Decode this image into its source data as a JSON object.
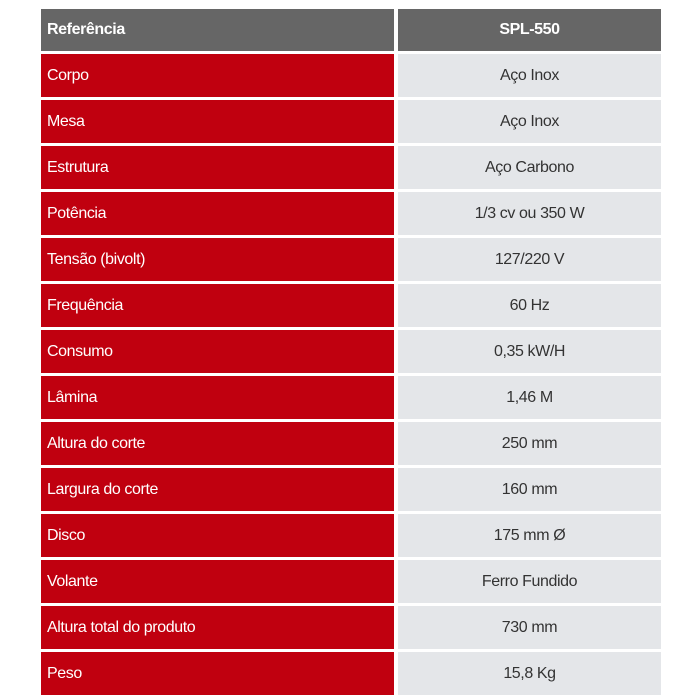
{
  "header": {
    "label": "Referência",
    "model": "SPL-550"
  },
  "rows": [
    {
      "label": "Corpo",
      "value": "Aço Inox"
    },
    {
      "label": "Mesa",
      "value": "Aço Inox"
    },
    {
      "label": "Estrutura",
      "value": "Aço Carbono"
    },
    {
      "label": "Potência",
      "value": "1/3 cv ou 350 W"
    },
    {
      "label": "Tensão (bivolt)",
      "value": "127/220 V"
    },
    {
      "label": "Frequência",
      "value": "60 Hz"
    },
    {
      "label": "Consumo",
      "value": "0,35 kW/H"
    },
    {
      "label": "Lâmina",
      "value": "1,46 M"
    },
    {
      "label": "Altura do corte",
      "value": "250 mm"
    },
    {
      "label": "Largura do corte",
      "value": "160 mm"
    },
    {
      "label": "Disco",
      "value": "175 mm Ø"
    },
    {
      "label": "Volante",
      "value": "Ferro Fundido"
    },
    {
      "label": "Altura total do produto",
      "value": "730 mm"
    },
    {
      "label": "Peso",
      "value": "15,8 Kg"
    }
  ],
  "colors": {
    "header_bg": "#666666",
    "label_bg": "#c0000f",
    "value_bg": "#e4e6e9"
  }
}
